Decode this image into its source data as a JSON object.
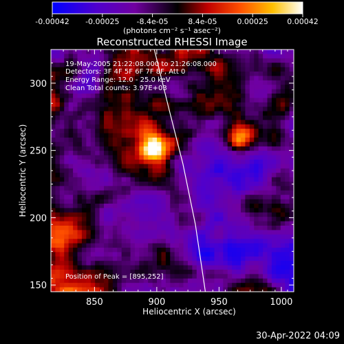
{
  "chart_data": {
    "type": "heatmap",
    "title": "Reconstructed RHESSI Image",
    "xlabel": "Heliocentric X (arcsec)",
    "ylabel": "Heliocentric Y (arcsec)",
    "xlim": [
      815,
      1010
    ],
    "ylim": [
      145,
      325
    ],
    "xticks": [
      850,
      900,
      950,
      1000
    ],
    "yticks": [
      150,
      200,
      250,
      300
    ],
    "colorbar": {
      "min": -0.00042,
      "max": 0.00042,
      "ticks": [
        "-0.00042",
        "-0.00025",
        "-8.4e-05",
        "8.4e-05",
        "0.00025",
        "0.00042"
      ],
      "unit": "(photons cm⁻² s⁻¹ asec⁻²)",
      "colors": [
        "#0000ff",
        "#5a00c8",
        "#7a00a0",
        "#000000",
        "#c80000",
        "#ff6a00",
        "#ffd000",
        "#ffffff"
      ]
    },
    "annotations": [
      "19-May-2005 21:22:08.000 to 21:26:08.000",
      "Detectors: 3F 4F 5F 6F 7F 8F, Att 0",
      "Energy Range: 12.0 - 25.0 keV",
      "Clean     Total counts: 3.97E+03"
    ],
    "peak_label": "Position of Peak = [895,252]",
    "peak": {
      "x": 895,
      "y": 252
    },
    "limb_points": [
      [
        898,
        325
      ],
      [
        910,
        280
      ],
      [
        921,
        240
      ],
      [
        931,
        195
      ],
      [
        939,
        145
      ]
    ]
  },
  "timestamp": "30-Apr-2022 04:09"
}
